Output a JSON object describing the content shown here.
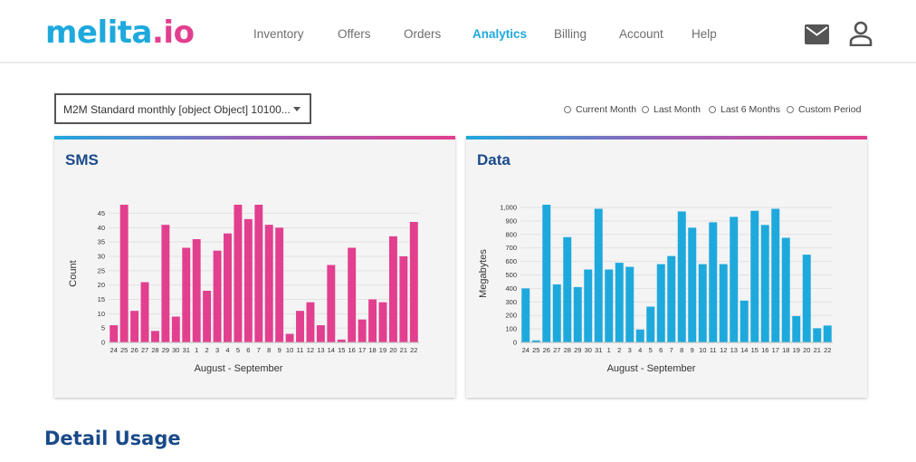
{
  "brand": {
    "part1": "melita",
    "part2": ".io"
  },
  "nav": [
    {
      "label": "Inventory",
      "active": false
    },
    {
      "label": "Offers",
      "active": false
    },
    {
      "label": "Orders",
      "active": false
    },
    {
      "label": "Analytics",
      "active": true
    },
    {
      "label": "Billing",
      "active": false
    },
    {
      "label": "Account",
      "active": false
    },
    {
      "label": "Help",
      "active": false
    }
  ],
  "header_icons": {
    "mail": "mail-icon",
    "user": "user-icon"
  },
  "plan_select": {
    "value": "M2M Standard monthly [object Object] 10100..."
  },
  "periods": [
    "Current Month",
    "Last Month",
    "Last 6 Months",
    "Custom Period"
  ],
  "section_title": "Detail Usage",
  "colors": {
    "sms": "#e23f8f",
    "data": "#1ea9dd",
    "title": "#1a4a8a"
  },
  "chart_data": [
    {
      "type": "bar",
      "title": "SMS",
      "xlabel": "August - September",
      "ylabel": "Count",
      "ylim": [
        0,
        48
      ],
      "yticks": [
        0,
        5,
        10,
        15,
        20,
        25,
        30,
        35,
        40,
        45
      ],
      "categories": [
        "24",
        "25",
        "26",
        "27",
        "28",
        "29",
        "30",
        "31",
        "1",
        "2",
        "3",
        "4",
        "5",
        "6",
        "7",
        "8",
        "9",
        "10",
        "11",
        "12",
        "13",
        "14",
        "15",
        "16",
        "17",
        "18",
        "19",
        "20",
        "21",
        "22"
      ],
      "values": [
        6,
        48,
        11,
        21,
        4,
        41,
        9,
        33,
        36,
        18,
        32,
        38,
        48,
        43,
        48,
        41,
        40,
        3,
        11,
        14,
        6,
        27,
        1,
        33,
        8,
        15,
        14,
        37,
        30,
        42
      ],
      "grid": true
    },
    {
      "type": "bar",
      "title": "Data",
      "xlabel": "August - September",
      "ylabel": "Megabytes",
      "ylim": [
        0,
        1020
      ],
      "yticks": [
        0,
        100,
        200,
        300,
        400,
        500,
        600,
        700,
        800,
        900,
        1000
      ],
      "ytick_labels": [
        "0",
        "100",
        "200",
        "300",
        "400",
        "500",
        "600",
        "700",
        "800",
        "900",
        "1,000"
      ],
      "categories": [
        "24",
        "25",
        "26",
        "27",
        "28",
        "29",
        "30",
        "31",
        "1",
        "2",
        "3",
        "4",
        "5",
        "6",
        "7",
        "8",
        "9",
        "10",
        "11",
        "12",
        "13",
        "14",
        "15",
        "16",
        "17",
        "18",
        "19",
        "20",
        "21",
        "22"
      ],
      "values": [
        400,
        15,
        1020,
        430,
        780,
        410,
        540,
        990,
        540,
        590,
        560,
        95,
        265,
        580,
        640,
        970,
        850,
        580,
        890,
        580,
        930,
        310,
        975,
        870,
        990,
        775,
        195,
        650,
        105,
        125
      ],
      "grid": true
    }
  ]
}
